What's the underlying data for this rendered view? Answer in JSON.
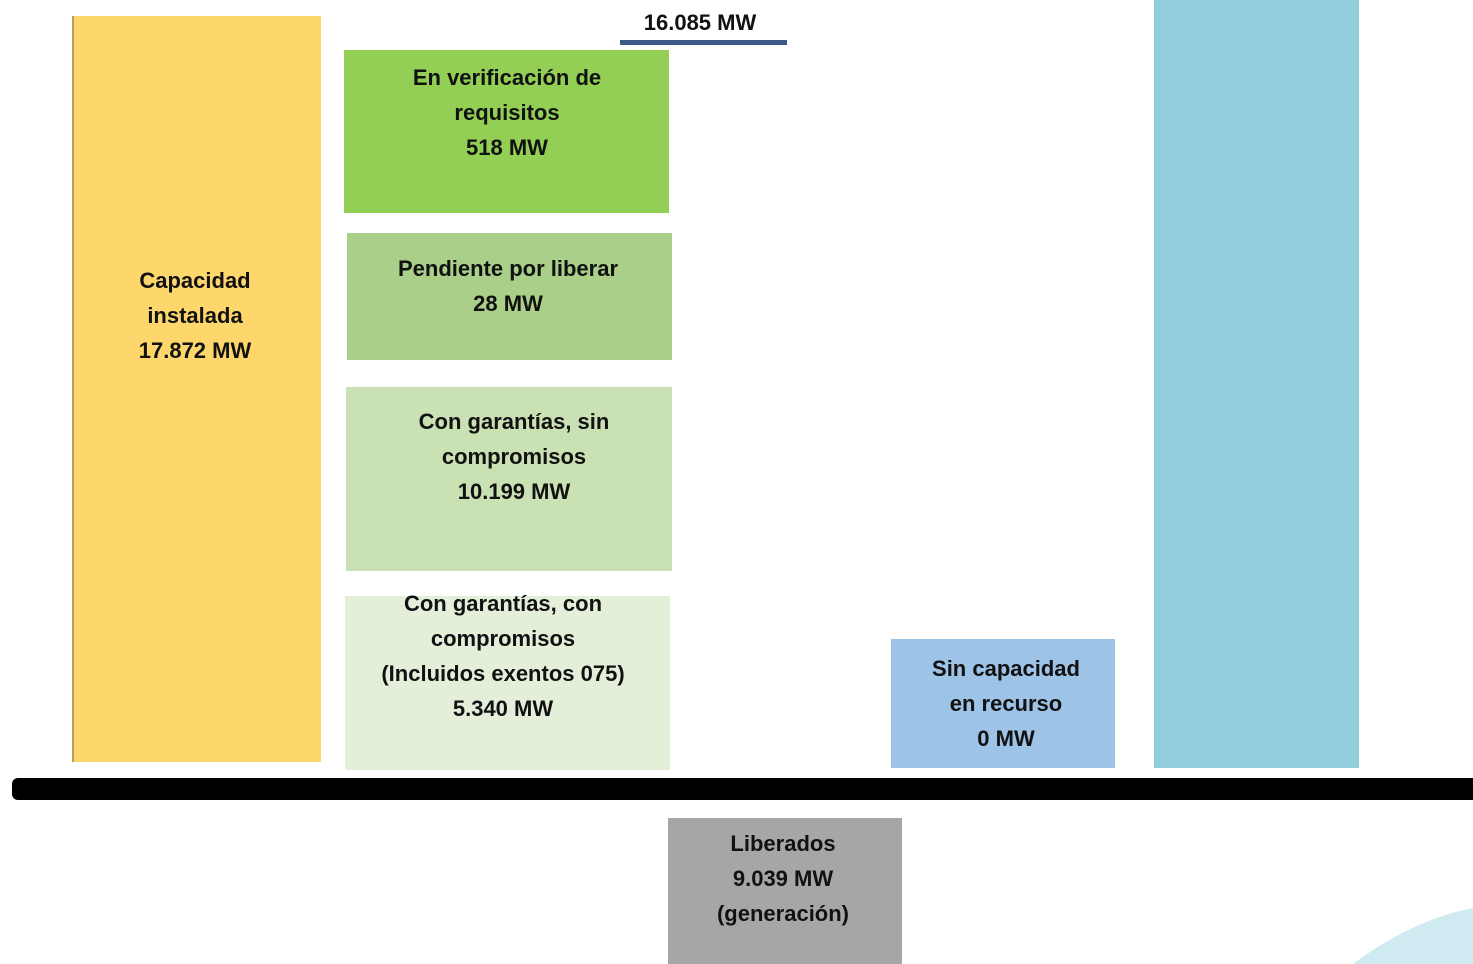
{
  "total": {
    "label": "16.085 MW"
  },
  "nodes": [
    {
      "lines": [
        "Capacidad",
        "instalada",
        "17.872 MW"
      ]
    },
    {
      "lines": [
        "En verificación de",
        "requisitos",
        "518 MW"
      ]
    },
    {
      "lines": [
        "Pendiente por liberar",
        "28 MW"
      ]
    },
    {
      "lines": [
        "Con garantías, sin",
        "compromisos",
        "10.199 MW"
      ]
    },
    {
      "lines": [
        "Con garantías, con",
        "compromisos",
        "(Incluidos exentos 075)",
        "5.340 MW"
      ]
    },
    {
      "lines": [
        "Sin capacidad",
        "en recurso",
        "0 MW"
      ]
    },
    {
      "lines": [
        "Liberados",
        "9.039 MW",
        "(generación)"
      ]
    }
  ]
}
